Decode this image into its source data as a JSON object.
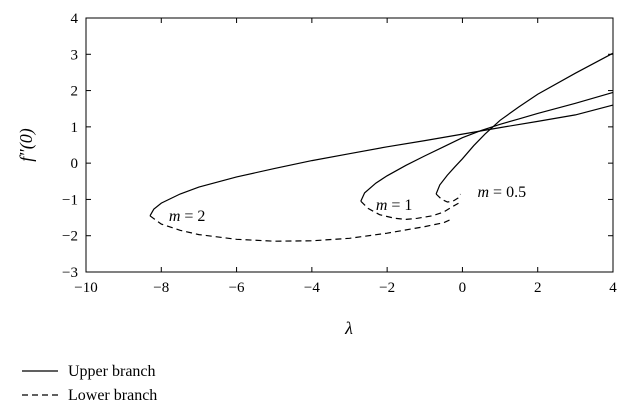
{
  "chart_data": {
    "type": "line",
    "xlabel": "λ",
    "ylabel": "f″(0)",
    "xlim": [
      -10,
      4
    ],
    "ylim": [
      -3,
      4
    ],
    "xticks": [
      -10,
      -8,
      -6,
      -4,
      -2,
      0,
      2,
      4
    ],
    "xtick_labels": [
      "−10",
      "−8",
      "−6",
      "−4",
      "−2",
      "0",
      "2",
      "4"
    ],
    "yticks": [
      -3,
      -2,
      -1,
      0,
      1,
      2,
      3,
      4
    ],
    "ytick_labels": [
      "−3",
      "−2",
      "−1",
      "0",
      "1",
      "2",
      "3",
      "4"
    ],
    "grid": false,
    "legend": {
      "placement": "bottom-left, outside plot",
      "entries": [
        {
          "label": "Upper branch",
          "style": "solid"
        },
        {
          "label": "Lower branch",
          "style": "dashed"
        }
      ]
    },
    "annotations": [
      {
        "text": "m = 2",
        "x": -7.8,
        "y": -1.45
      },
      {
        "text": "m = 1",
        "x": -2.3,
        "y": -1.15
      },
      {
        "text": "m = 0.5",
        "x": 0.4,
        "y": -0.8
      }
    ],
    "series": [
      {
        "group": "m = 2",
        "style": "solid",
        "x": [
          -8.3,
          -8.2,
          -8.0,
          -7.5,
          -7.0,
          -6.0,
          -5.0,
          -4.0,
          -3.0,
          -2.0,
          -1.0,
          0.0,
          1.0,
          2.0,
          3.0,
          4.0
        ],
        "y": [
          -1.45,
          -1.27,
          -1.1,
          -0.85,
          -0.66,
          -0.38,
          -0.15,
          0.07,
          0.26,
          0.45,
          0.62,
          0.8,
          0.98,
          1.15,
          1.33,
          1.6
        ]
      },
      {
        "group": "m = 2",
        "style": "dashed",
        "x": [
          -8.3,
          -8.0,
          -7.5,
          -7.0,
          -6.0,
          -5.0,
          -4.0,
          -3.0,
          -2.0,
          -1.0,
          -0.5,
          -0.3
        ],
        "y": [
          -1.45,
          -1.68,
          -1.85,
          -1.97,
          -2.1,
          -2.15,
          -2.14,
          -2.07,
          -1.93,
          -1.75,
          -1.64,
          -1.55
        ]
      },
      {
        "group": "m = 1",
        "style": "solid",
        "x": [
          -2.7,
          -2.6,
          -2.3,
          -2.0,
          -1.5,
          -1.0,
          -0.5,
          0.0,
          0.5,
          1.0,
          1.5,
          2.0,
          3.0,
          4.0
        ],
        "y": [
          -1.05,
          -0.82,
          -0.55,
          -0.35,
          -0.06,
          0.2,
          0.45,
          0.7,
          0.9,
          1.07,
          1.22,
          1.37,
          1.65,
          1.95
        ]
      },
      {
        "group": "m = 1",
        "style": "dashed",
        "x": [
          -2.7,
          -2.5,
          -2.2,
          -1.8,
          -1.5,
          -1.2,
          -0.8,
          -0.5,
          -0.3,
          -0.1
        ],
        "y": [
          -1.05,
          -1.25,
          -1.42,
          -1.52,
          -1.55,
          -1.52,
          -1.45,
          -1.35,
          -1.22,
          -1.1
        ]
      },
      {
        "group": "m = 0.5",
        "style": "solid",
        "x": [
          -0.7,
          -0.6,
          -0.4,
          -0.2,
          0.0,
          0.3,
          0.6,
          1.0,
          1.5,
          2.0,
          3.0,
          4.0
        ],
        "y": [
          -0.85,
          -0.6,
          -0.33,
          -0.1,
          0.12,
          0.48,
          0.8,
          1.18,
          1.55,
          1.9,
          2.48,
          3.03
        ]
      },
      {
        "group": "m = 0.5",
        "style": "dashed",
        "x": [
          -0.7,
          -0.55,
          -0.4,
          -0.25,
          -0.1,
          -0.05
        ],
        "y": [
          -0.85,
          -1.0,
          -1.07,
          -1.05,
          -0.95,
          -0.85
        ]
      }
    ]
  }
}
